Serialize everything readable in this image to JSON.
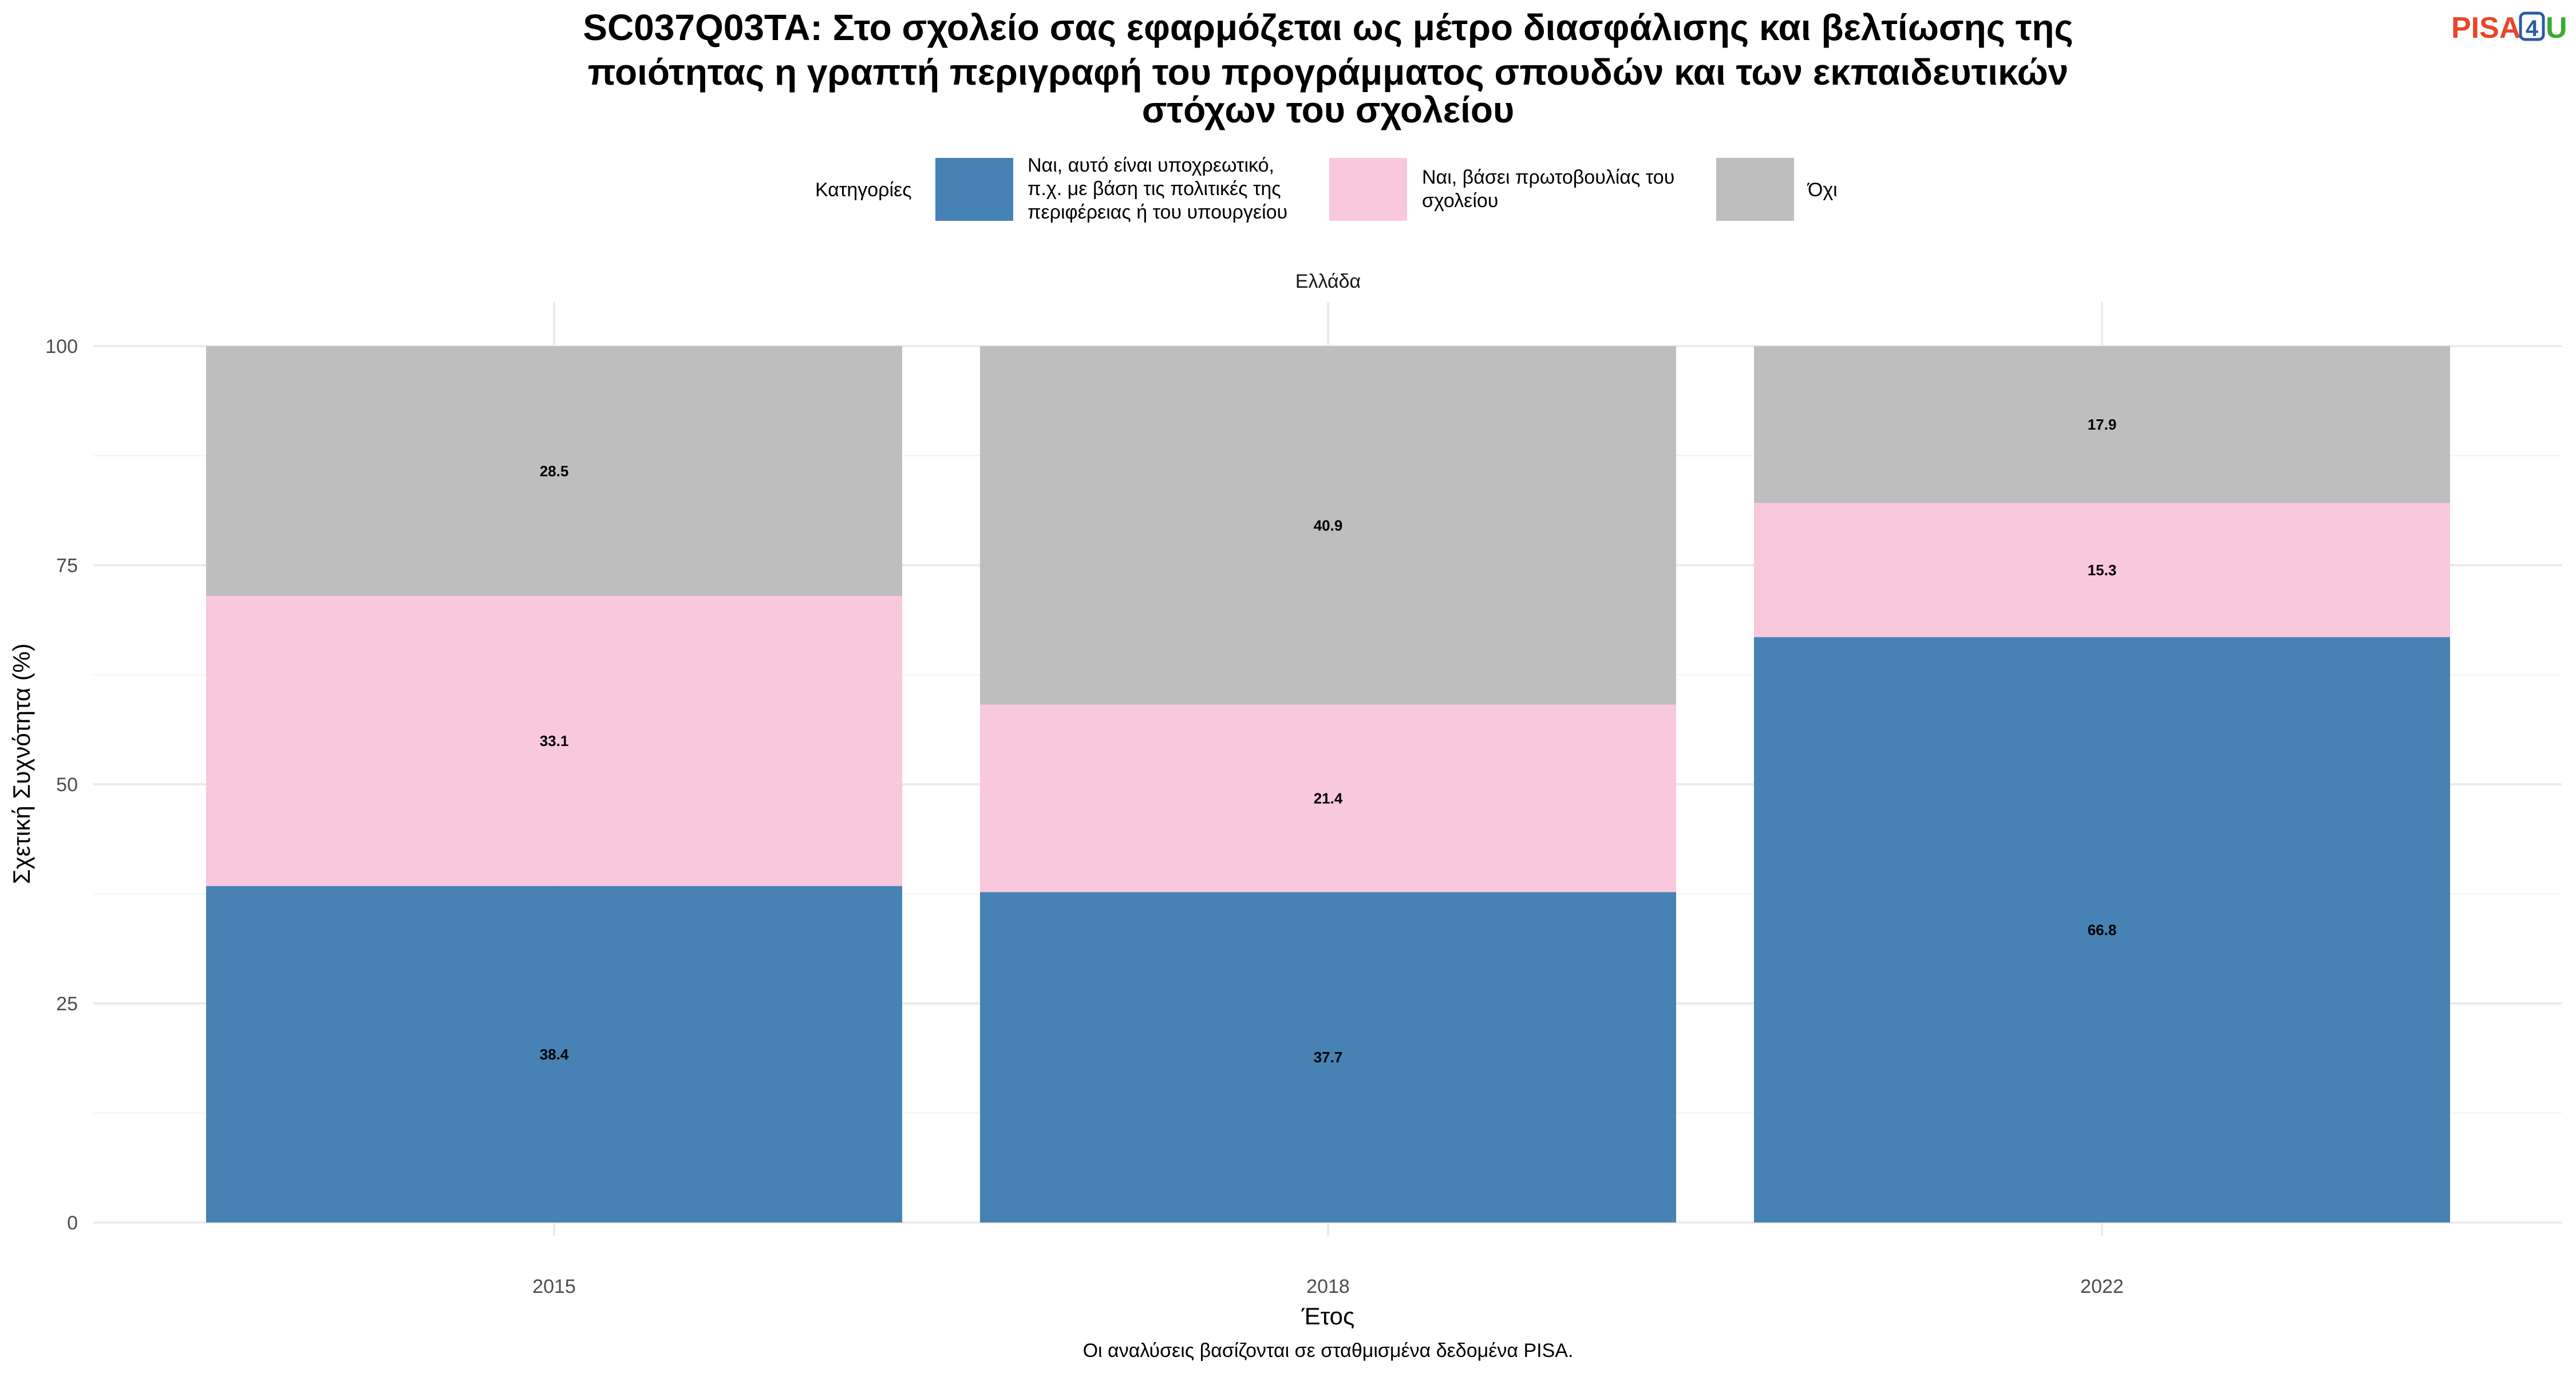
{
  "title_lines": [
    "SC037Q03TA: Στο σχολείο σας εφαρμόζεται ως μέτρο διασφάλισης και βελτίωσης της",
    "ποιότητας η γραπτή περιγραφή του προγράμματος σπουδών και των εκπαιδευτικών",
    "στόχων του σχολείου"
  ],
  "logo": {
    "text_pisa": "PISA",
    "text_four": "4",
    "text_u": "U",
    "colors": {
      "pisa": "#e8462a",
      "four": "#2a5ba8",
      "u": "#3aaa35"
    }
  },
  "legend": {
    "title": "Κατηγορίες",
    "items": [
      {
        "lines": [
          "Ναι, αυτό είναι υποχρεωτικό,",
          "π.χ. με βάση τις πολιτικές της",
          "περιφέρειας ή του υπουργείου"
        ],
        "color": "#4682b4"
      },
      {
        "lines": [
          "Ναι, βάσει πρωτοβουλίας του",
          "σχολείου"
        ],
        "color": "#f8c8dc"
      },
      {
        "lines": [
          "Όχι"
        ],
        "color": "#bebebe"
      }
    ]
  },
  "facet_label": "Ελλάδα",
  "caption": "Οι αναλύσεις βασίζονται σε σταθμισμένα δεδομένα PISA.",
  "chart_data": {
    "type": "bar",
    "stacked": true,
    "categories": [
      "2015",
      "2018",
      "2022"
    ],
    "series": [
      {
        "name": "Ναι, αυτό είναι υποχρεωτικό, π.χ. με βάση τις πολιτικές της περιφέρειας ή του υπουργείου",
        "values": [
          38.4,
          37.7,
          66.8
        ],
        "color": "#4682b4"
      },
      {
        "name": "Ναι, βάσει πρωτοβουλίας του σχολείου",
        "values": [
          33.1,
          21.4,
          15.3
        ],
        "color": "#f8c8dc"
      },
      {
        "name": "Όχι",
        "values": [
          28.5,
          40.9,
          17.9
        ],
        "color": "#bebebe"
      }
    ],
    "xlabel": "Έτος",
    "ylabel": "Σχετική Συχνότητα (%)",
    "ylim": [
      0,
      100
    ],
    "yticks": [
      "0",
      "25",
      "50",
      "75",
      "100"
    ],
    "grid": true,
    "legend_position": "top"
  }
}
